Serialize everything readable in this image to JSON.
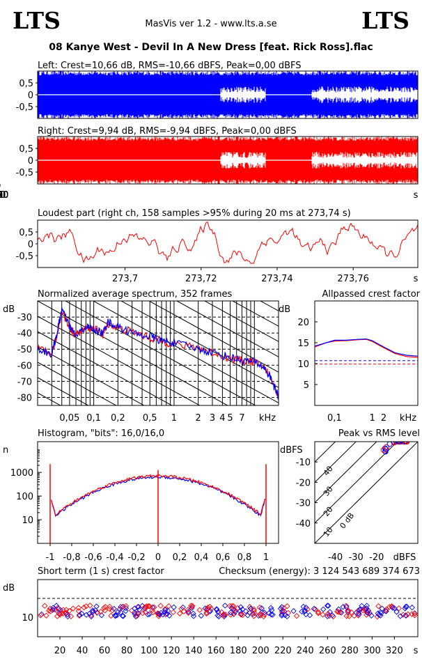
{
  "header": {
    "logo_left": "LTS",
    "logo_right": "LTS",
    "app_title": "MasVis ver 1.2 - www.lts.a.se",
    "file_title": "08 Kanye West - Devil In A New Dress [feat. Rick Ross].flac"
  },
  "colors": {
    "left": "#0000ff",
    "right": "#ff0000",
    "axis": "#000000"
  },
  "chart_data": [
    {
      "id": "left",
      "type": "area",
      "title": "Left: Crest=10,66 dB, RMS=-10,66 dBFS, Peak=0,00 dBFS",
      "ylim": [
        -1,
        1
      ],
      "yticks": [
        "0,5",
        "0",
        "-0,5"
      ],
      "duration_s": 341
    },
    {
      "id": "right",
      "type": "area",
      "title": "Right: Crest=9,94 dB, RMS=-9,94 dBFS, Peak=0,00 dBFS",
      "ylim": [
        -1,
        1
      ],
      "yticks": [
        "0,5",
        "0",
        "-0,5"
      ],
      "xticks": [
        "20",
        "40",
        "60",
        "80",
        "100",
        "120",
        "140",
        "160",
        "180",
        "200",
        "220",
        "240",
        "260",
        "280",
        "300",
        "320"
      ],
      "xunit": "s",
      "marker_time_s": 273.74
    },
    {
      "id": "loudest",
      "type": "line",
      "title": "Loudest part (right ch, 158 samples >95% during 20 ms at 273,74 s)",
      "ylim": [
        -1,
        1
      ],
      "yticks": [
        "0,5",
        "0",
        "-0,5"
      ],
      "xticks": [
        "273,7",
        "273,72",
        "273,74",
        "273,76"
      ],
      "xunit": "s"
    },
    {
      "id": "spectrum",
      "type": "line",
      "title": "Normalized average spectrum, 352 frames",
      "ylabel": "dB",
      "yticks": [
        "-30",
        "-40",
        "-50",
        "-60",
        "-70",
        "-80"
      ],
      "xticks": [
        "0,05",
        "0,1",
        "0,2",
        "0,5",
        "1",
        "2",
        "3",
        "4",
        "5",
        "7"
      ],
      "xunit": "kHz",
      "points_khz": [
        0.02,
        0.03,
        0.035,
        0.04,
        0.05,
        0.06,
        0.08,
        0.1,
        0.13,
        0.15,
        0.2,
        0.3,
        0.5,
        0.7,
        1,
        2,
        3,
        5,
        7,
        10,
        13,
        16,
        20
      ],
      "left_db": [
        -50,
        -53,
        -40,
        -25,
        -36,
        -42,
        -36,
        -38,
        -40,
        -33,
        -36,
        -40,
        -42,
        -45,
        -46,
        -50,
        -52,
        -55,
        -57,
        -58,
        -61,
        -68,
        -80
      ],
      "right_db": [
        -50,
        -53,
        -41,
        -26,
        -37,
        -41,
        -37,
        -37,
        -41,
        -34,
        -37,
        -39,
        -43,
        -45,
        -47,
        -49,
        -52,
        -56,
        -57,
        -58,
        -61,
        -67,
        -80
      ]
    },
    {
      "id": "allpass",
      "type": "line",
      "title": "Allpassed crest factor",
      "ylabel": "dB",
      "yticks": [
        "20",
        "15",
        "10",
        "5"
      ],
      "xticks": [
        "0,1",
        "1",
        "2"
      ],
      "xunit": "kHz",
      "points_khz": [
        0.03,
        0.06,
        0.1,
        0.2,
        0.4,
        0.7,
        1,
        2,
        4,
        8,
        16
      ],
      "left_db": [
        14.2,
        15,
        15.6,
        15.6,
        15.8,
        15.9,
        15.5,
        14,
        12.6,
        12,
        11.8
      ],
      "right_db": [
        14,
        15,
        15.4,
        15.5,
        15.7,
        15.8,
        15.3,
        13.8,
        12.4,
        11.7,
        11.5
      ],
      "left_ref_db": 10.7,
      "right_ref_db": 9.9
    },
    {
      "id": "histogram",
      "type": "line",
      "title": "Histogram, \"bits\": 16,0/16,0",
      "ylabel": "n",
      "yticks": [
        "1000",
        "100",
        "10"
      ],
      "xticks": [
        "-1",
        "-0,8",
        "-0,6",
        "-0,4",
        "-0,2",
        "0",
        "0,2",
        "0,4",
        "0,6",
        "0,8",
        "1"
      ]
    },
    {
      "id": "peakrms",
      "type": "scatter",
      "title": "Peak vs RMS level",
      "ylabel": "dBFS",
      "yticks": [
        "-10",
        "-20",
        "-30",
        "-40"
      ],
      "xticks": [
        "-40",
        "-30",
        "-20"
      ],
      "xunit": "dBFS",
      "diag_labels": [
        "40",
        "30",
        "20",
        "10",
        "0 dB"
      ]
    },
    {
      "id": "shortcrest",
      "type": "scatter",
      "title": "Short term (1 s) crest factor",
      "checksum": "Checksum (energy):  3 124 543 689 374 673",
      "ylabel": "dB",
      "yticks": [
        "10"
      ],
      "xticks": [
        "20",
        "40",
        "60",
        "80",
        "100",
        "120",
        "140",
        "160",
        "180",
        "200",
        "220",
        "240",
        "260",
        "280",
        "300",
        "320"
      ],
      "xunit": "s"
    }
  ]
}
